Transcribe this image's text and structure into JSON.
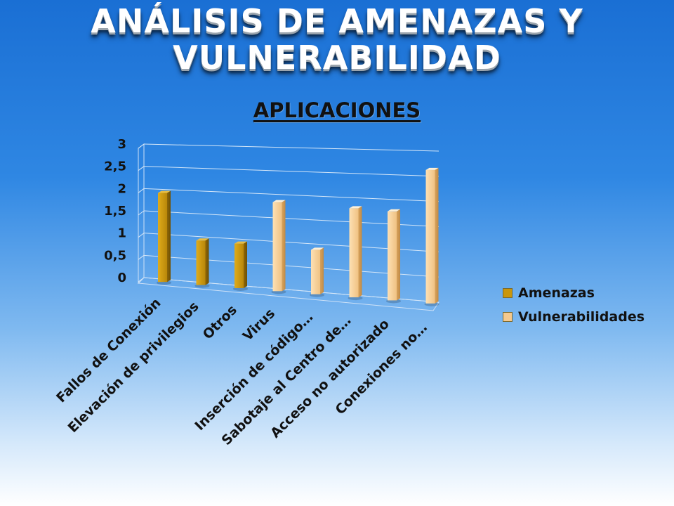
{
  "title": "ANÁLISIS DE AMENAZAS Y VULNERABILIDAD",
  "subtitle": "APLICACIONES",
  "chart_data": {
    "type": "bar",
    "categories": [
      "Fallos de Conexión",
      "Elevación de privilegios",
      "Otros",
      "Virus",
      "Inserción de código…",
      "Sabotaje al Centro de…",
      "Acceso no autorizado",
      "Conexiones no…"
    ],
    "series": [
      {
        "name": "Amenazas",
        "color": "#c9960c",
        "values": [
          2,
          1,
          1,
          null,
          null,
          null,
          null,
          null
        ]
      },
      {
        "name": "Vulnerabilidades",
        "color": "#f5c98e",
        "values": [
          null,
          null,
          null,
          2,
          1,
          2,
          2,
          3
        ]
      }
    ],
    "yticks": [
      "0",
      "0,5",
      "1",
      "1,5",
      "2",
      "2,5",
      "3"
    ],
    "ylim": [
      0,
      3
    ],
    "legend_position": "right",
    "grid": true
  }
}
